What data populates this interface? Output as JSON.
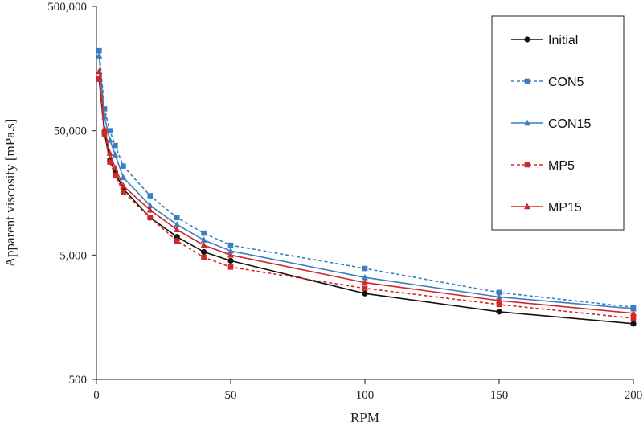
{
  "chart_data": {
    "type": "line",
    "title": "",
    "xlabel": "RPM",
    "ylabel": "Apparent viscosity [mPa.s]",
    "xlim": [
      0,
      200
    ],
    "ylim": [
      500,
      500000
    ],
    "y_scale": "log",
    "grid": false,
    "legend_position": "top-right",
    "x_ticks": [
      "0",
      "50",
      "100",
      "150",
      "200"
    ],
    "y_ticks": [
      "500",
      "5,000",
      "50,000",
      "500,000"
    ],
    "x_tick_values": [
      0,
      50,
      100,
      150,
      200
    ],
    "y_tick_values": [
      500,
      5000,
      50000,
      500000
    ],
    "series": [
      {
        "name": "Initial",
        "color": "#111111",
        "dash": false,
        "marker": "circle",
        "x": [
          1,
          3,
          5,
          7,
          10,
          20,
          30,
          40,
          50,
          100,
          150,
          200
        ],
        "y": [
          130000,
          48000,
          29000,
          23000,
          17000,
          10000,
          7000,
          5300,
          4500,
          2450,
          1750,
          1400
        ]
      },
      {
        "name": "CON5",
        "color": "#3a7fc1",
        "dash": true,
        "marker": "square",
        "x": [
          1,
          3,
          5,
          7,
          10,
          20,
          30,
          40,
          50,
          100,
          150,
          200
        ],
        "y": [
          220000,
          75000,
          50000,
          38000,
          26000,
          15000,
          10000,
          7500,
          6000,
          3900,
          2500,
          1900
        ]
      },
      {
        "name": "CON15",
        "color": "#3a7fc1",
        "dash": false,
        "marker": "triangle",
        "x": [
          1,
          3,
          5,
          7,
          10,
          20,
          30,
          40,
          50,
          100,
          150,
          200
        ],
        "y": [
          200000,
          65000,
          42000,
          32000,
          21000,
          12500,
          8800,
          6600,
          5400,
          3300,
          2300,
          1850
        ]
      },
      {
        "name": "MP5",
        "color": "#d02828",
        "dash": true,
        "marker": "square",
        "x": [
          1,
          3,
          5,
          7,
          10,
          20,
          30,
          40,
          50,
          100,
          150,
          200
        ],
        "y": [
          130000,
          47000,
          28000,
          22000,
          16000,
          10000,
          6500,
          4800,
          4000,
          2700,
          2000,
          1550
        ]
      },
      {
        "name": "MP15",
        "color": "#d02828",
        "dash": false,
        "marker": "triangle",
        "x": [
          1,
          3,
          5,
          7,
          10,
          20,
          30,
          40,
          50,
          100,
          150,
          200
        ],
        "y": [
          150000,
          52000,
          33000,
          25000,
          18000,
          11500,
          8000,
          6000,
          5000,
          3000,
          2150,
          1700
        ]
      }
    ]
  }
}
